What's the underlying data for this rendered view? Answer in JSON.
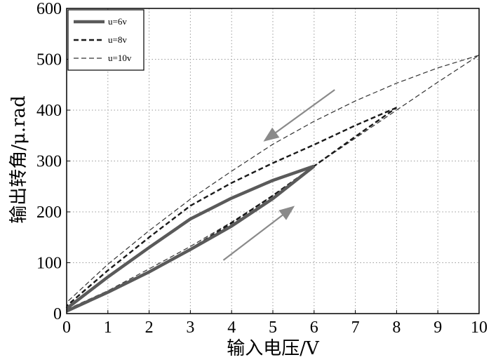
{
  "chart_data": {
    "type": "line",
    "xlabel": "输入电压/V",
    "ylabel": "输出转角/μ.rad",
    "xlim": [
      0,
      10
    ],
    "ylim": [
      0,
      600
    ],
    "xticks": [
      0,
      1,
      2,
      3,
      4,
      5,
      6,
      7,
      8,
      9,
      10
    ],
    "yticks": [
      0,
      100,
      200,
      300,
      400,
      500,
      600
    ],
    "grid": true,
    "legend_position": "top-left",
    "series": [
      {
        "name": "u=6v",
        "style": "solid-thick",
        "color": "#5a5a5a",
        "rising": [
          [
            0,
            5
          ],
          [
            1,
            42
          ],
          [
            2,
            82
          ],
          [
            3,
            126
          ],
          [
            4,
            172
          ],
          [
            5,
            226
          ],
          [
            6,
            290
          ]
        ],
        "falling": [
          [
            6,
            290
          ],
          [
            5,
            262
          ],
          [
            4,
            227
          ],
          [
            3,
            186
          ],
          [
            2,
            130
          ],
          [
            1,
            72
          ],
          [
            0,
            10
          ]
        ]
      },
      {
        "name": "u=8v",
        "style": "dashed",
        "color": "#1a1a1a",
        "rising": [
          [
            0,
            5
          ],
          [
            1,
            42
          ],
          [
            2,
            82
          ],
          [
            3,
            127
          ],
          [
            4,
            178
          ],
          [
            5,
            232
          ],
          [
            6,
            290
          ],
          [
            7,
            348
          ],
          [
            8,
            405
          ]
        ],
        "falling": [
          [
            8,
            405
          ],
          [
            7,
            370
          ],
          [
            6,
            332
          ],
          [
            5,
            296
          ],
          [
            4,
            257
          ],
          [
            3,
            212
          ],
          [
            2,
            150
          ],
          [
            1,
            85
          ],
          [
            0,
            15
          ]
        ]
      },
      {
        "name": "u=10v",
        "style": "thin-dashed",
        "color": "#333333",
        "rising": [
          [
            0,
            8
          ],
          [
            1,
            45
          ],
          [
            2,
            88
          ],
          [
            3,
            132
          ],
          [
            4,
            180
          ],
          [
            5,
            232
          ],
          [
            6,
            290
          ],
          [
            7,
            345
          ],
          [
            8,
            400
          ],
          [
            9,
            455
          ],
          [
            10,
            508
          ]
        ],
        "falling": [
          [
            10,
            508
          ],
          [
            9,
            483
          ],
          [
            8,
            453
          ],
          [
            7,
            418
          ],
          [
            6,
            378
          ],
          [
            5,
            333
          ],
          [
            4,
            280
          ],
          [
            3,
            225
          ],
          [
            2,
            163
          ],
          [
            1,
            97
          ],
          [
            0,
            22
          ]
        ]
      }
    ],
    "annotations": [
      {
        "type": "arrow",
        "direction": "down-left",
        "from": [
          6.5,
          440
        ],
        "to": [
          4.8,
          340
        ],
        "color": "#8a8a8a"
      },
      {
        "type": "arrow",
        "direction": "up-right",
        "from": [
          3.8,
          105
        ],
        "to": [
          5.5,
          210
        ],
        "color": "#8a8a8a"
      }
    ]
  }
}
